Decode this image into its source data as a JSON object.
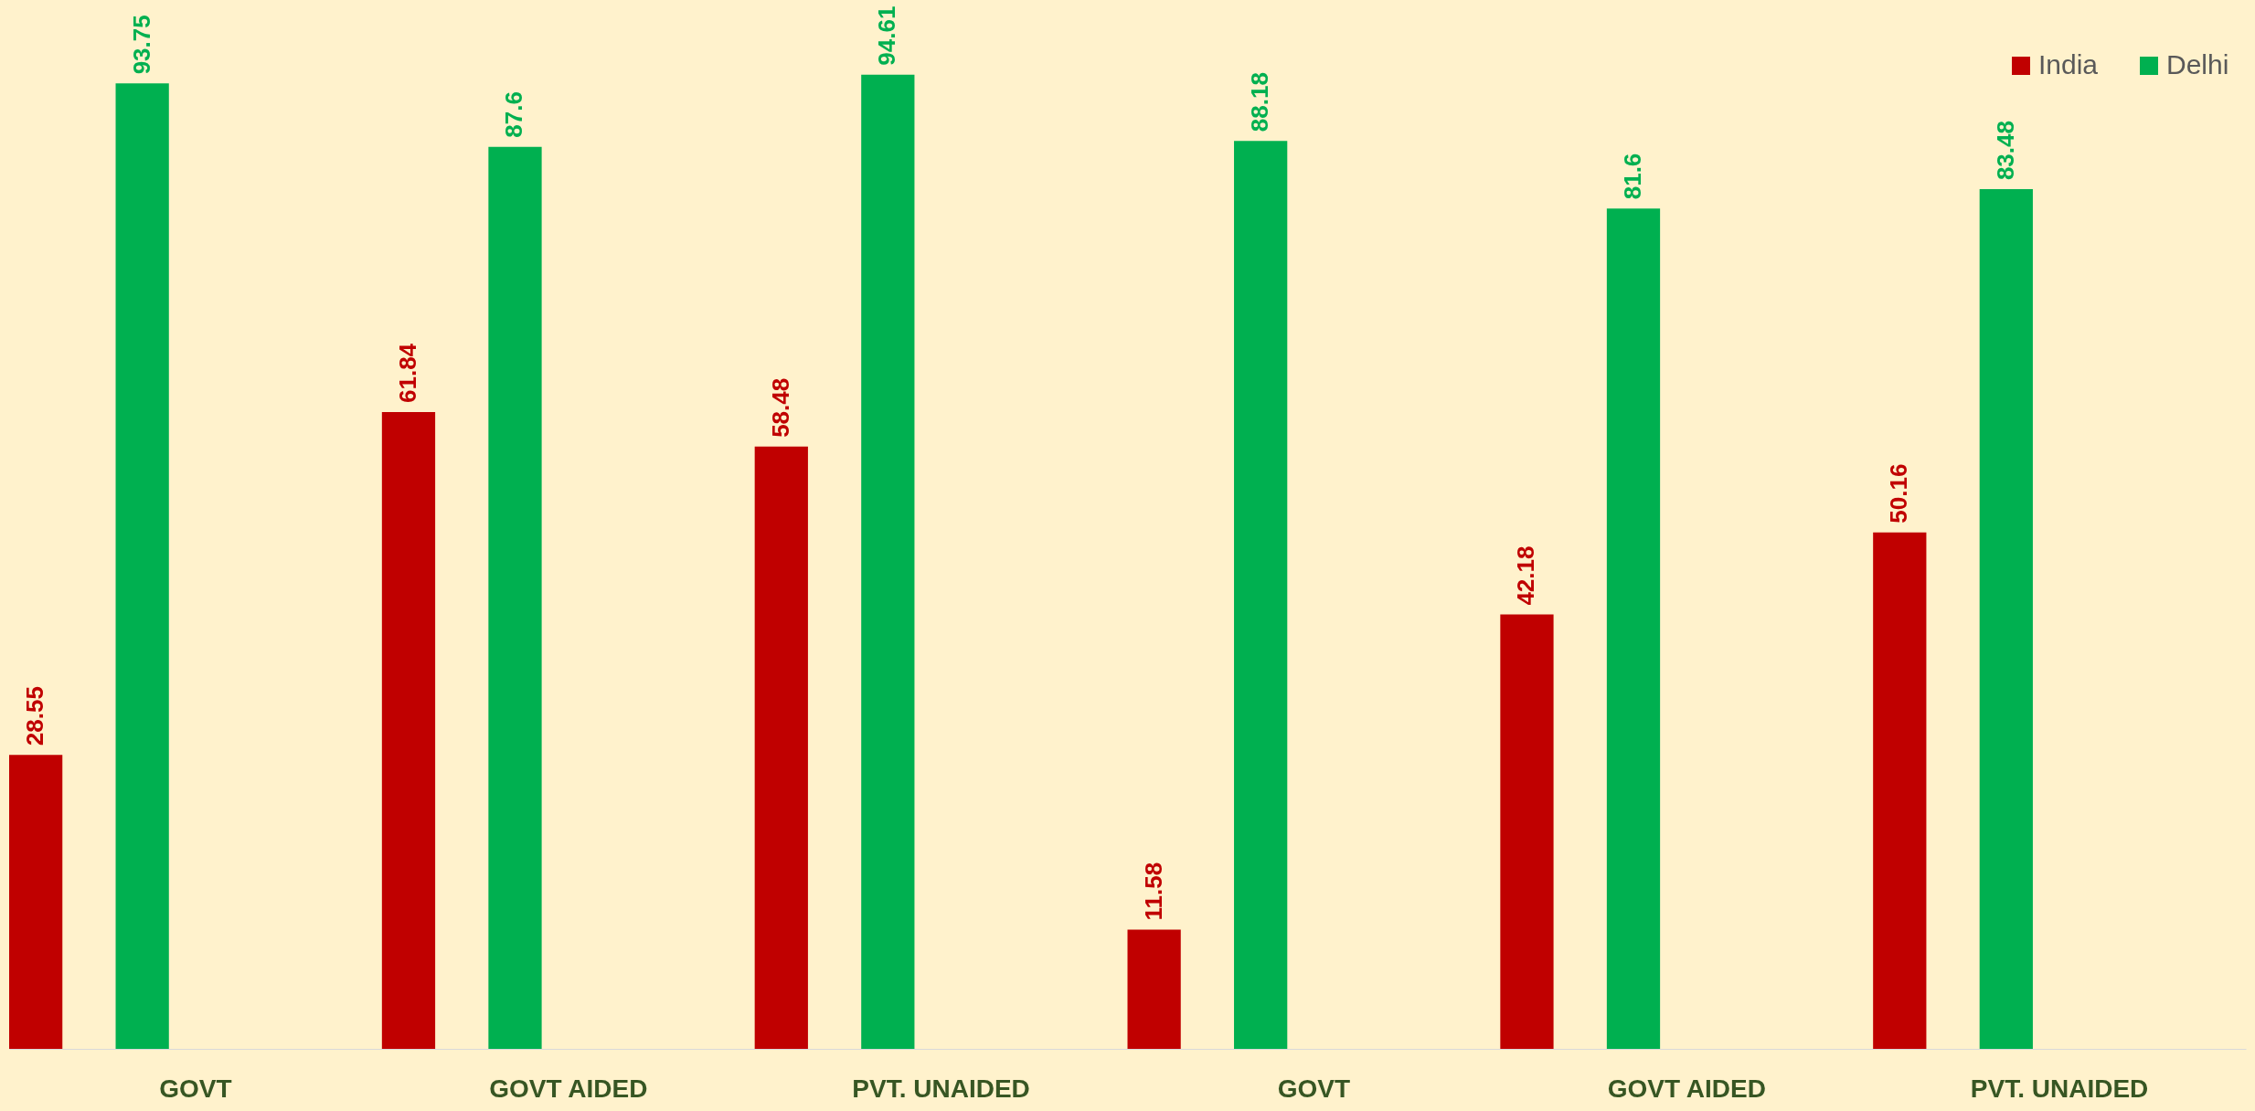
{
  "chart_data": {
    "type": "bar",
    "categories": [
      "GOVT",
      "GOVT AIDED",
      "PVT. UNAIDED",
      "GOVT",
      "GOVT AIDED",
      "PVT. UNAIDED"
    ],
    "series": [
      {
        "name": "India",
        "color": "#c00000",
        "values": [
          28.55,
          61.84,
          58.48,
          11.58,
          42.18,
          50.16
        ]
      },
      {
        "name": "Delhi",
        "color": "#00b050",
        "values": [
          93.75,
          87.6,
          94.61,
          88.18,
          81.6,
          83.48
        ]
      }
    ],
    "data_labels": true,
    "legend": "top right"
  }
}
